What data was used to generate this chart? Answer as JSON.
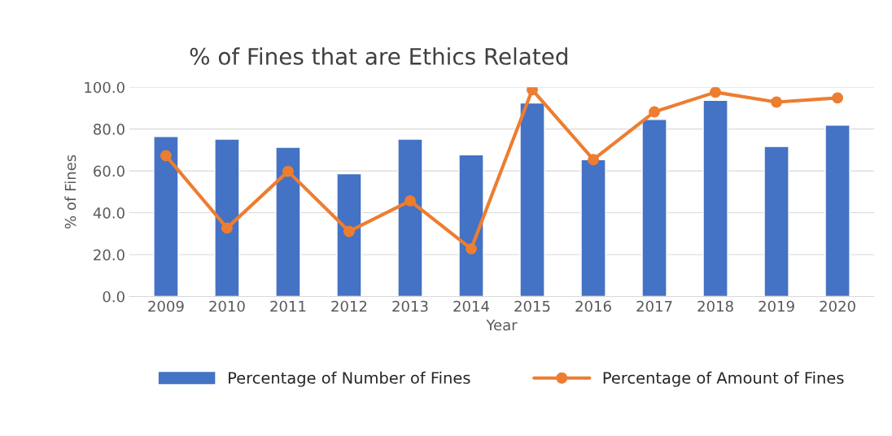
{
  "chart_data": {
    "type": "bar",
    "title": "% of Fines that are Ethics Related",
    "xlabel": "Year",
    "ylabel": "% of Fines",
    "categories": [
      "2009",
      "2010",
      "2011",
      "2012",
      "2013",
      "2014",
      "2015",
      "2016",
      "2017",
      "2018",
      "2019",
      "2020"
    ],
    "series": [
      {
        "name": "Percentage of Number of Fines",
        "color": "#4472c4",
        "values": [
          76.4,
          75.2,
          71.3,
          58.7,
          75.2,
          67.7,
          92.5,
          65.4,
          84.6,
          93.7,
          71.7,
          81.9
        ]
      },
      {
        "name": "Percentage of Amount of Fines",
        "type": "line",
        "color": "#ed7d31",
        "marker": "circle",
        "values": [
          67.3,
          32.7,
          59.8,
          31.1,
          45.7,
          22.8,
          98.8,
          65.4,
          88.2,
          97.6,
          92.9,
          94.9
        ]
      }
    ],
    "ylim": [
      0,
      100
    ],
    "yticks": [
      {
        "value": 0,
        "label": "0.0"
      },
      {
        "value": 20,
        "label": "20.0"
      },
      {
        "value": 40,
        "label": "40.0"
      },
      {
        "value": 60,
        "label": "60.0"
      },
      {
        "value": 80,
        "label": "80.0"
      },
      {
        "value": 100,
        "label": "100.0"
      }
    ],
    "grid": "y",
    "legend": "bottom"
  }
}
